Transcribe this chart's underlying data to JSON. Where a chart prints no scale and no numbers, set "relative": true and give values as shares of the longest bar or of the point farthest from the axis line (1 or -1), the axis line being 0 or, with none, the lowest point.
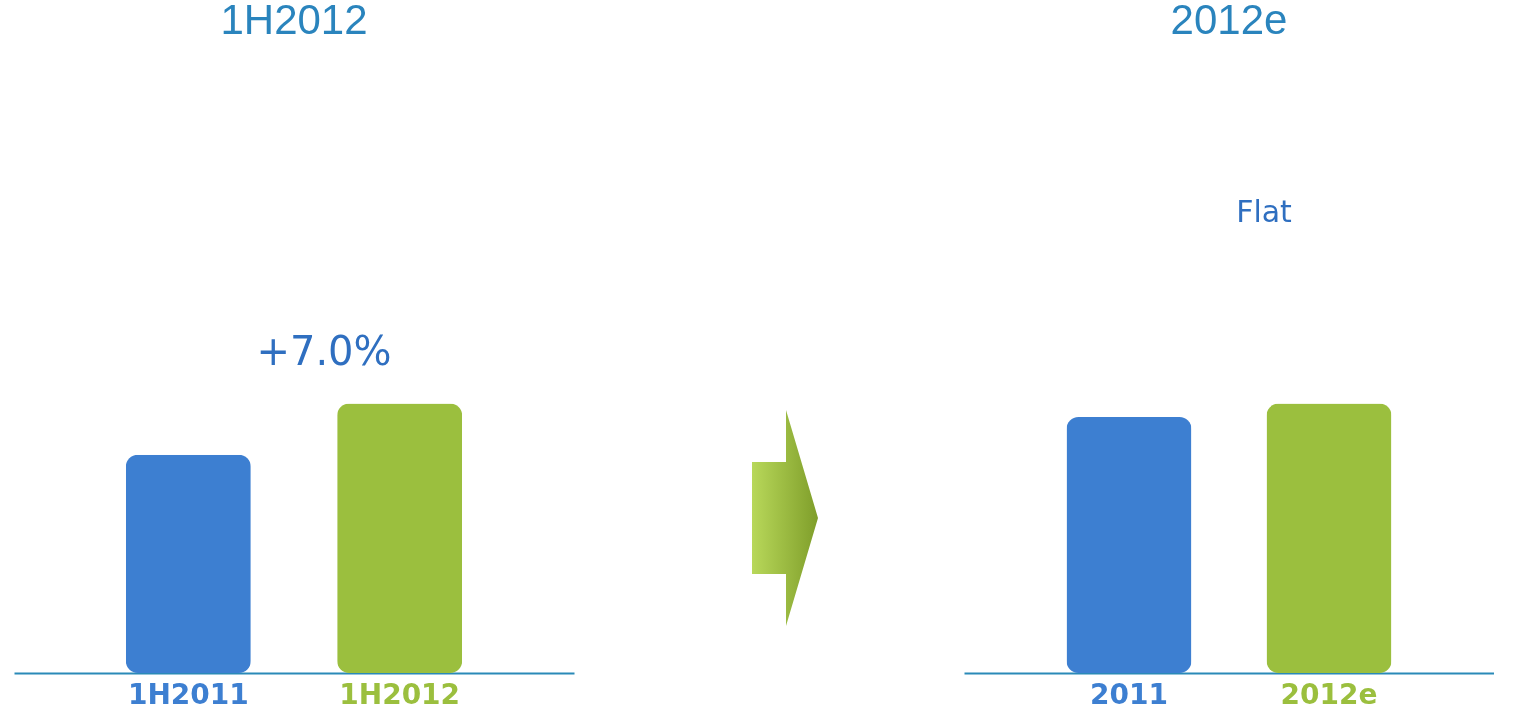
{
  "chart_data": [
    {
      "type": "bar",
      "title": "1H2012",
      "categories": [
        "1H2011",
        "1H2012"
      ],
      "values": [
        0.81,
        1
      ],
      "colors": [
        "#3d7fd1",
        "#9bbf3e"
      ],
      "relative": true,
      "annotations": [
        "+7.0%"
      ]
    },
    {
      "type": "bar",
      "title": "2012e",
      "categories": [
        "2011",
        "2012e"
      ],
      "values": [
        0.95,
        1
      ],
      "colors": [
        "#3d7fd1",
        "#9bbf3e"
      ],
      "relative": true,
      "annotations": [
        "Flat"
      ]
    }
  ]
}
